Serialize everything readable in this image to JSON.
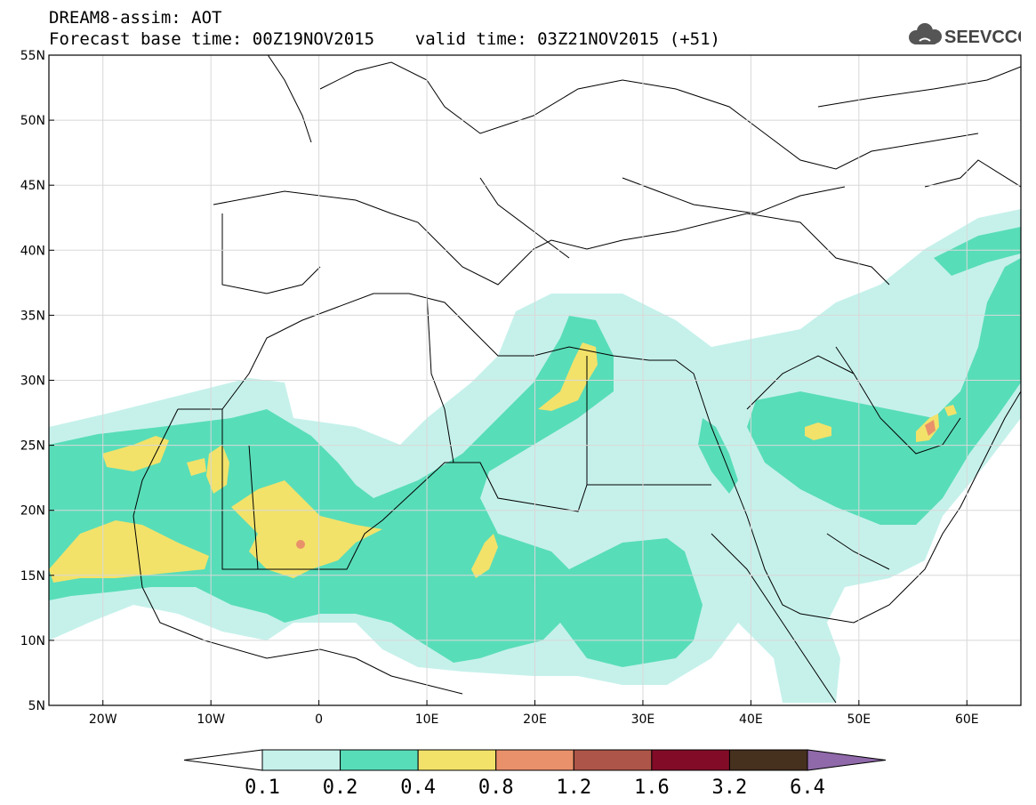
{
  "title": {
    "line1": "DREAM8-assim: AOT",
    "line2": "Forecast base time: 00Z19NOV2015    valid time: 03Z21NOV2015 (+51)"
  },
  "logo": {
    "text": "SEEVCCC",
    "icon": "cloud-icon"
  },
  "map": {
    "lon_range": [
      -25,
      65
    ],
    "lat_range": [
      5,
      55
    ],
    "lon_ticks": [
      "20W",
      "10W",
      "0",
      "10E",
      "20E",
      "30E",
      "40E",
      "50E",
      "60E"
    ],
    "lat_ticks": [
      "55N",
      "50N",
      "45N",
      "40N",
      "35N",
      "30N",
      "25N",
      "20N",
      "15N",
      "10N",
      "5N"
    ],
    "grid": true
  },
  "colorbar": {
    "labels": [
      "0.1",
      "0.2",
      "0.4",
      "0.8",
      "1.2",
      "1.6",
      "3.2",
      "6.4"
    ],
    "colors": [
      "#c6f1eb",
      "#58ddb9",
      "#f2e26a",
      "#e9916b",
      "#ad5548",
      "#820c27",
      "#46301e",
      "#8f69a9"
    ]
  }
}
